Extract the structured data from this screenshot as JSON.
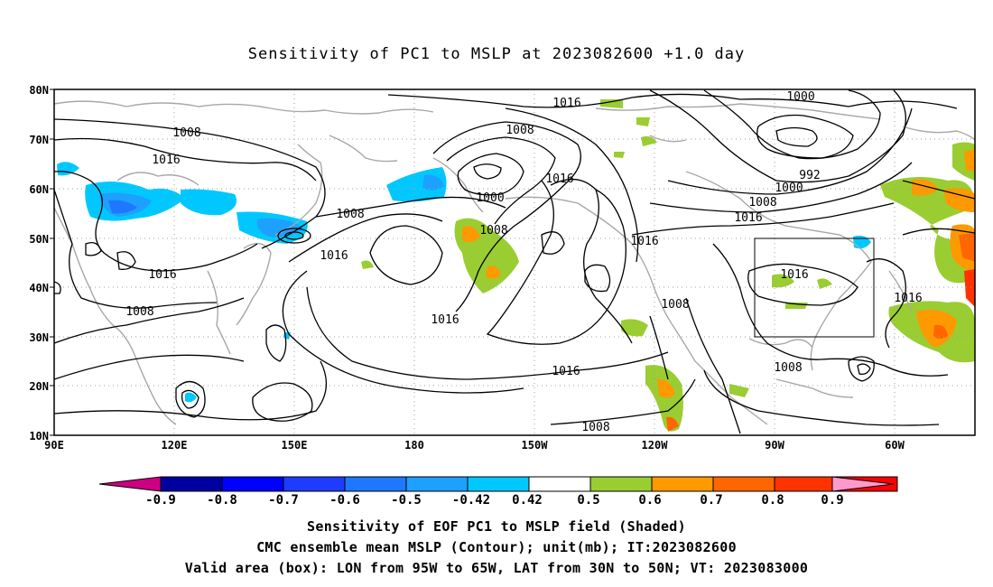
{
  "title": "Sensitivity of PC1 to MSLP at 2023082600 +1.0 day",
  "lat_ticks": [
    "80N",
    "70N",
    "60N",
    "50N",
    "40N",
    "30N",
    "20N",
    "10N"
  ],
  "lon_ticks": [
    "90E",
    "120E",
    "150E",
    "180",
    "150W",
    "120W",
    "90W",
    "60W"
  ],
  "isobar_labels": [
    "1016",
    "1008",
    "1016",
    "1008",
    "1000",
    "1016",
    "1008",
    "1008",
    "1000",
    "992",
    "1000",
    "1008",
    "1016",
    "1016",
    "1016",
    "1008",
    "1016",
    "1016",
    "1016",
    "1008",
    "1016",
    "1008",
    "1008"
  ],
  "colorbar": {
    "labels": [
      "-0.9",
      "-0.8",
      "-0.7",
      "-0.6",
      "-0.5",
      "-0.42",
      "0.42",
      "0.5",
      "0.6",
      "0.7",
      "0.8",
      "0.9"
    ],
    "colors": [
      "#0000a0",
      "#0000ff",
      "#1e3cff",
      "#1e78ff",
      "#1ea0ff",
      "#00c8ff",
      "#ffffff",
      "#9acd32",
      "#ff9900",
      "#ff6600",
      "#ff3300",
      "#ff0000"
    ],
    "left_cap": "#cc0080",
    "right_cap": "#ff99cc"
  },
  "captions": [
    "Sensitivity of EOF PC1 to MSLP field (Shaded)",
    "CMC ensemble mean MSLP (Contour); unit(mb); IT:2023082600",
    "Valid area (box): LON from 95W to 65W, LAT from 30N to 50N; VT: 2023083000"
  ]
}
